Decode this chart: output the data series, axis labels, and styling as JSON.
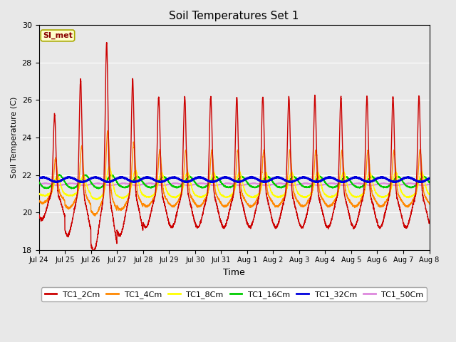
{
  "title": "Soil Temperatures Set 1",
  "xlabel": "Time",
  "ylabel": "Soil Temperature (C)",
  "ylim": [
    18,
    30
  ],
  "background_color": "#e8e8e8",
  "plot_bg_color": "#e8e8e8",
  "annotation_text": "SI_met",
  "series_colors": {
    "TC1_2Cm": "#cc0000",
    "TC1_4Cm": "#ff8800",
    "TC1_8Cm": "#ffff00",
    "TC1_16Cm": "#00cc00",
    "TC1_32Cm": "#0000dd",
    "TC1_50Cm": "#dd88dd"
  },
  "series_linewidths": {
    "TC1_2Cm": 1.0,
    "TC1_4Cm": 1.0,
    "TC1_8Cm": 1.0,
    "TC1_16Cm": 1.2,
    "TC1_32Cm": 1.8,
    "TC1_50Cm": 1.2
  },
  "xtick_labels": [
    "Jul 24",
    "Jul 25",
    "Jul 26",
    "Jul 27",
    "Jul 28",
    "Jul 29",
    "Jul 30",
    "Jul 31",
    "Aug 1",
    "Aug 2",
    "Aug 3",
    "Aug 4",
    "Aug 5",
    "Aug 6",
    "Aug 7",
    "Aug 8"
  ],
  "xtick_positions": [
    0,
    24,
    48,
    72,
    96,
    120,
    144,
    168,
    192,
    216,
    240,
    264,
    288,
    312,
    336,
    360
  ],
  "ytick_positions": [
    18,
    20,
    22,
    24,
    26,
    28,
    30
  ],
  "grid_color": "#ffffff",
  "figsize": [
    6.4,
    4.8
  ],
  "dpi": 100
}
